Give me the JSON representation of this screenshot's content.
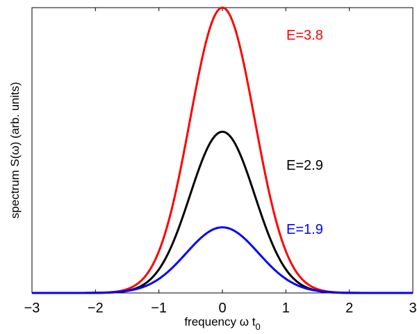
{
  "chart_data": {
    "type": "line",
    "xlabel": "frequency ω t",
    "xlabel_subscript": "0",
    "ylabel": "spectrum S(ω) (arb. units)",
    "xlim": [
      -3,
      3
    ],
    "ylim": [
      0,
      1
    ],
    "grid": false,
    "legend": "none",
    "x_ticks": [
      -3,
      -2,
      -1,
      0,
      1,
      2,
      3
    ],
    "x_tick_labels": [
      "−3",
      "−2",
      "−1",
      "0",
      "1",
      "2",
      "3"
    ],
    "y_ticks": [],
    "series": [
      {
        "name": "E=3.8",
        "color": "#ff0000",
        "peak": 1.0,
        "width": 0.51
      },
      {
        "name": "E=2.9",
        "color": "#000000",
        "peak": 0.565,
        "width": 0.51
      },
      {
        "name": "E=1.9",
        "color": "#0000ff",
        "peak": 0.23,
        "width": 0.57
      }
    ]
  }
}
